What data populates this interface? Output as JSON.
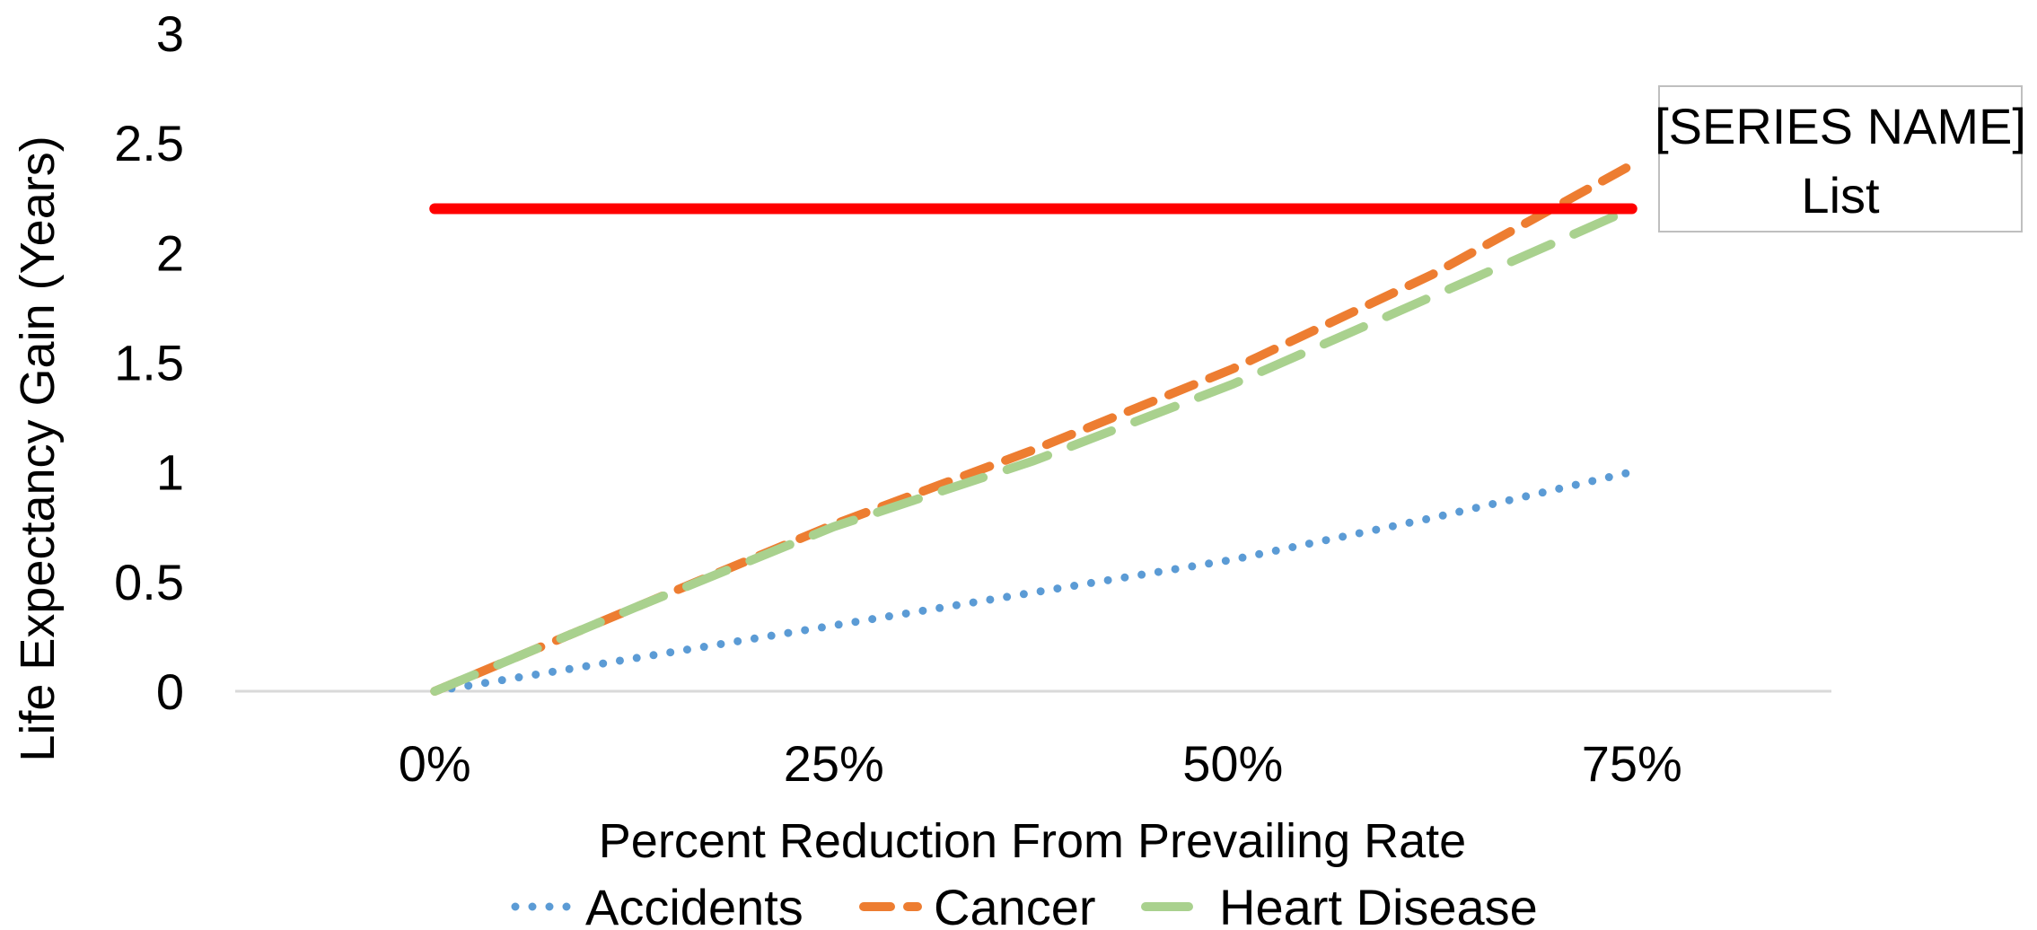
{
  "chart_data": {
    "type": "line",
    "title": "",
    "xlabel": "Percent Reduction From Prevailing Rate",
    "ylabel": "Life Expectancy Gain (Years)",
    "x": [
      0,
      0.125,
      0.25,
      0.375,
      0.5,
      0.625,
      0.75
    ],
    "categories": [
      "0%",
      "25%",
      "50%",
      "75%"
    ],
    "xlim": [
      -0.125,
      0.875
    ],
    "ylim": [
      0,
      3
    ],
    "yticks": [
      "0",
      "0.5",
      "1",
      "1.5",
      "2",
      "2.5",
      "3"
    ],
    "grid": false,
    "legend_position": "bottom",
    "series": [
      {
        "name": "Accidents",
        "color": "#5B9BD5",
        "style": "dotted",
        "values": [
          0,
          0.15,
          0.3,
          0.45,
          0.6,
          0.79,
          1.0
        ]
      },
      {
        "name": "Cancer",
        "color": "#ED7D31",
        "style": "dashed",
        "values": [
          0,
          0.38,
          0.76,
          1.1,
          1.47,
          1.9,
          2.4
        ]
      },
      {
        "name": "Heart Disease",
        "color": "#A9D18E",
        "style": "long-dashed",
        "values": [
          0,
          0.38,
          0.75,
          1.05,
          1.4,
          1.8,
          2.2
        ]
      }
    ],
    "reference_line": {
      "value": 2.2,
      "color": "#FF0000",
      "x_range": [
        0,
        0.75
      ]
    },
    "callout": {
      "line1": "[SERIES NAME]",
      "line2": "List"
    }
  }
}
